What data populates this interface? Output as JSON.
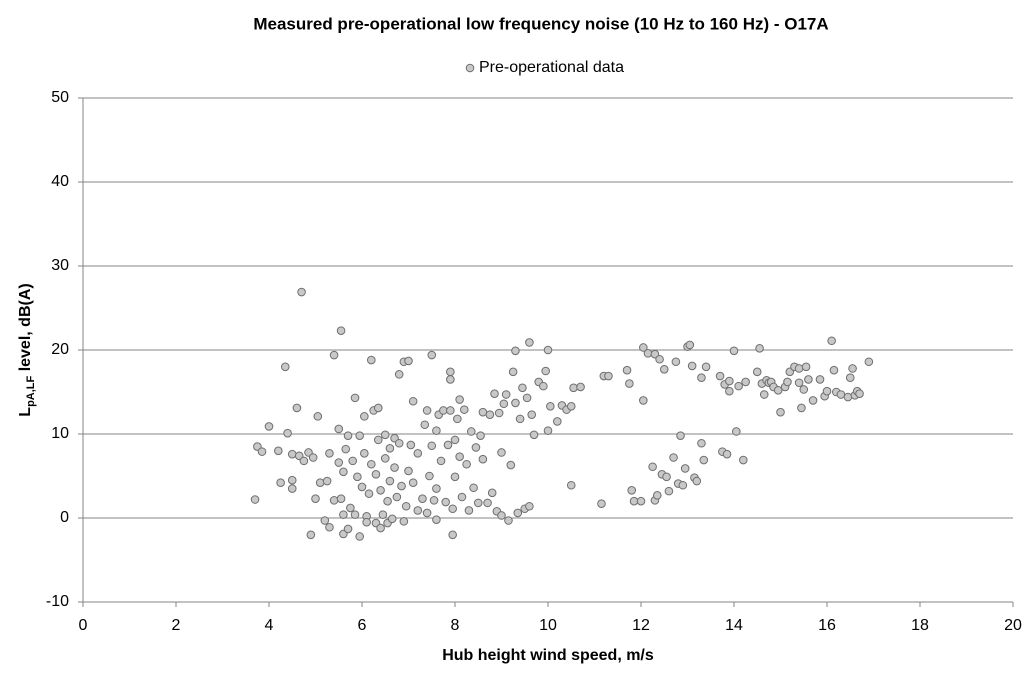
{
  "chart_data": {
    "type": "scatter",
    "title": "Measured pre-operational low frequency noise (10 Hz to 160 Hz) - O17A",
    "xlabel": "Hub height wind speed, m/s",
    "ylabel": [
      "L",
      "pA,LF",
      " level, dB(A)"
    ],
    "xlim": [
      0,
      20
    ],
    "xticks": [
      0,
      2,
      4,
      6,
      8,
      10,
      12,
      14,
      16,
      18,
      20
    ],
    "ylim": [
      -10,
      50
    ],
    "yticks": [
      -10,
      0,
      10,
      20,
      30,
      40,
      50
    ],
    "grid": true,
    "legend": "top",
    "series": [
      {
        "name": "Pre-operational data",
        "color": "#c8c8c8",
        "edgecolor": "#6e6e6e",
        "x": [
          3.7,
          3.75,
          3.85,
          4.0,
          4.2,
          4.25,
          4.35,
          4.4,
          4.5,
          4.5,
          4.5,
          4.6,
          4.65,
          4.7,
          4.75,
          4.85,
          4.9,
          4.95,
          5.0,
          5.05,
          5.1,
          5.2,
          5.25,
          5.3,
          5.3,
          5.4,
          5.4,
          5.5,
          5.5,
          5.55,
          5.55,
          5.6,
          5.6,
          5.6,
          5.65,
          5.7,
          5.7,
          5.75,
          5.8,
          5.85,
          5.85,
          5.9,
          5.95,
          5.95,
          6.0,
          6.05,
          6.05,
          6.1,
          6.1,
          6.15,
          6.2,
          6.2,
          6.25,
          6.3,
          6.3,
          6.35,
          6.35,
          6.4,
          6.4,
          6.45,
          6.5,
          6.5,
          6.55,
          6.55,
          6.6,
          6.6,
          6.65,
          6.7,
          6.7,
          6.75,
          6.8,
          6.8,
          6.85,
          6.9,
          6.9,
          6.95,
          7.0,
          7.0,
          7.05,
          7.1,
          7.1,
          7.2,
          7.2,
          7.3,
          7.35,
          7.4,
          7.4,
          7.45,
          7.5,
          7.5,
          7.55,
          7.6,
          7.6,
          7.6,
          7.65,
          7.7,
          7.75,
          7.8,
          7.85,
          7.9,
          7.9,
          7.9,
          7.95,
          7.95,
          8.0,
          8.0,
          8.05,
          8.1,
          8.1,
          8.15,
          8.2,
          8.25,
          8.3,
          8.35,
          8.4,
          8.45,
          8.5,
          8.55,
          8.6,
          8.6,
          8.7,
          8.75,
          8.8,
          8.85,
          8.9,
          8.95,
          9.0,
          9.0,
          9.05,
          9.1,
          9.15,
          9.2,
          9.25,
          9.3,
          9.3,
          9.35,
          9.4,
          9.45,
          9.5,
          9.55,
          9.6,
          9.6,
          9.65,
          9.7,
          9.8,
          9.9,
          9.95,
          10.0,
          10.0,
          10.05,
          10.2,
          10.3,
          10.4,
          10.5,
          10.5,
          10.55,
          10.7,
          11.15,
          11.2,
          11.3,
          11.7,
          11.75,
          11.8,
          11.85,
          12.0,
          12.05,
          12.05,
          12.15,
          12.25,
          12.3,
          12.3,
          12.35,
          12.4,
          12.45,
          12.5,
          12.55,
          12.6,
          12.7,
          12.75,
          12.8,
          12.85,
          12.9,
          12.95,
          13.0,
          13.05,
          13.1,
          13.15,
          13.2,
          13.3,
          13.3,
          13.35,
          13.4,
          13.7,
          13.75,
          13.8,
          13.85,
          13.9,
          13.9,
          14.0,
          14.05,
          14.1,
          14.2,
          14.25,
          14.5,
          14.55,
          14.6,
          14.65,
          14.7,
          14.75,
          14.8,
          14.85,
          14.95,
          15.0,
          15.1,
          15.15,
          15.2,
          15.3,
          15.4,
          15.4,
          15.45,
          15.5,
          15.55,
          15.6,
          15.7,
          15.85,
          15.95,
          16.0,
          16.1,
          16.15,
          16.2,
          16.3,
          16.45,
          16.5,
          16.55,
          16.6,
          16.65,
          16.7,
          16.9
        ],
        "values": [
          2.2,
          8.5,
          7.9,
          10.9,
          8.0,
          4.2,
          18.0,
          10.1,
          4.5,
          3.5,
          7.6,
          13.1,
          7.4,
          26.9,
          6.8,
          7.8,
          -2.0,
          7.2,
          2.3,
          12.1,
          4.2,
          -0.3,
          4.4,
          -1.1,
          7.7,
          19.4,
          2.1,
          6.6,
          10.6,
          22.3,
          2.3,
          -1.9,
          0.4,
          5.5,
          8.2,
          -1.3,
          9.8,
          1.2,
          6.8,
          14.3,
          0.4,
          4.9,
          -2.2,
          9.8,
          3.7,
          12.1,
          7.7,
          0.2,
          -0.5,
          2.9,
          6.4,
          18.8,
          12.8,
          -0.6,
          5.2,
          9.3,
          13.1,
          -1.2,
          3.3,
          0.4,
          7.1,
          9.9,
          2.0,
          -0.6,
          8.3,
          4.4,
          -0.1,
          6.0,
          9.5,
          2.5,
          17.1,
          8.9,
          3.8,
          18.6,
          -0.4,
          1.4,
          5.6,
          18.7,
          8.7,
          13.9,
          4.2,
          7.7,
          0.9,
          2.3,
          11.1,
          12.8,
          0.6,
          5.0,
          19.4,
          8.6,
          2.1,
          10.4,
          3.5,
          -0.2,
          12.3,
          6.8,
          12.8,
          1.9,
          8.7,
          17.4,
          12.8,
          16.5,
          1.1,
          -2.0,
          4.9,
          9.3,
          11.8,
          14.1,
          7.3,
          2.5,
          12.9,
          6.4,
          0.9,
          10.3,
          3.6,
          8.4,
          1.8,
          9.8,
          12.6,
          7.0,
          1.8,
          12.3,
          3.0,
          14.8,
          0.8,
          12.5,
          7.8,
          0.3,
          13.6,
          14.7,
          -0.3,
          6.3,
          17.4,
          19.9,
          13.7,
          0.6,
          11.8,
          15.5,
          1.1,
          14.3,
          20.9,
          1.4,
          12.3,
          9.9,
          16.2,
          15.7,
          17.5,
          10.4,
          20.0,
          13.3,
          11.5,
          13.4,
          12.9,
          13.3,
          3.9,
          15.5,
          15.6,
          1.7,
          16.9,
          16.9,
          17.6,
          16.0,
          3.3,
          2.0,
          2.0,
          20.3,
          14.0,
          19.6,
          6.1,
          19.5,
          2.1,
          2.7,
          18.9,
          5.2,
          17.7,
          4.9,
          3.2,
          7.2,
          18.6,
          4.1,
          9.8,
          3.9,
          5.9,
          20.4,
          20.6,
          18.1,
          4.8,
          4.4,
          8.9,
          16.7,
          6.9,
          18.0,
          16.9,
          7.9,
          15.9,
          7.6,
          16.3,
          15.1,
          19.9,
          10.3,
          15.7,
          6.9,
          16.2,
          17.4,
          20.2,
          16.0,
          14.7,
          16.4,
          16.1,
          16.2,
          15.6,
          15.2,
          12.6,
          15.6,
          16.2,
          17.4,
          18.0,
          16.1,
          17.8,
          13.1,
          15.3,
          18.0,
          16.5,
          14.0,
          16.5,
          14.5,
          15.1,
          21.1,
          17.6,
          15.0,
          14.7,
          14.4,
          16.7,
          17.8,
          14.6,
          15.1,
          14.8,
          18.6
        ]
      }
    ]
  }
}
